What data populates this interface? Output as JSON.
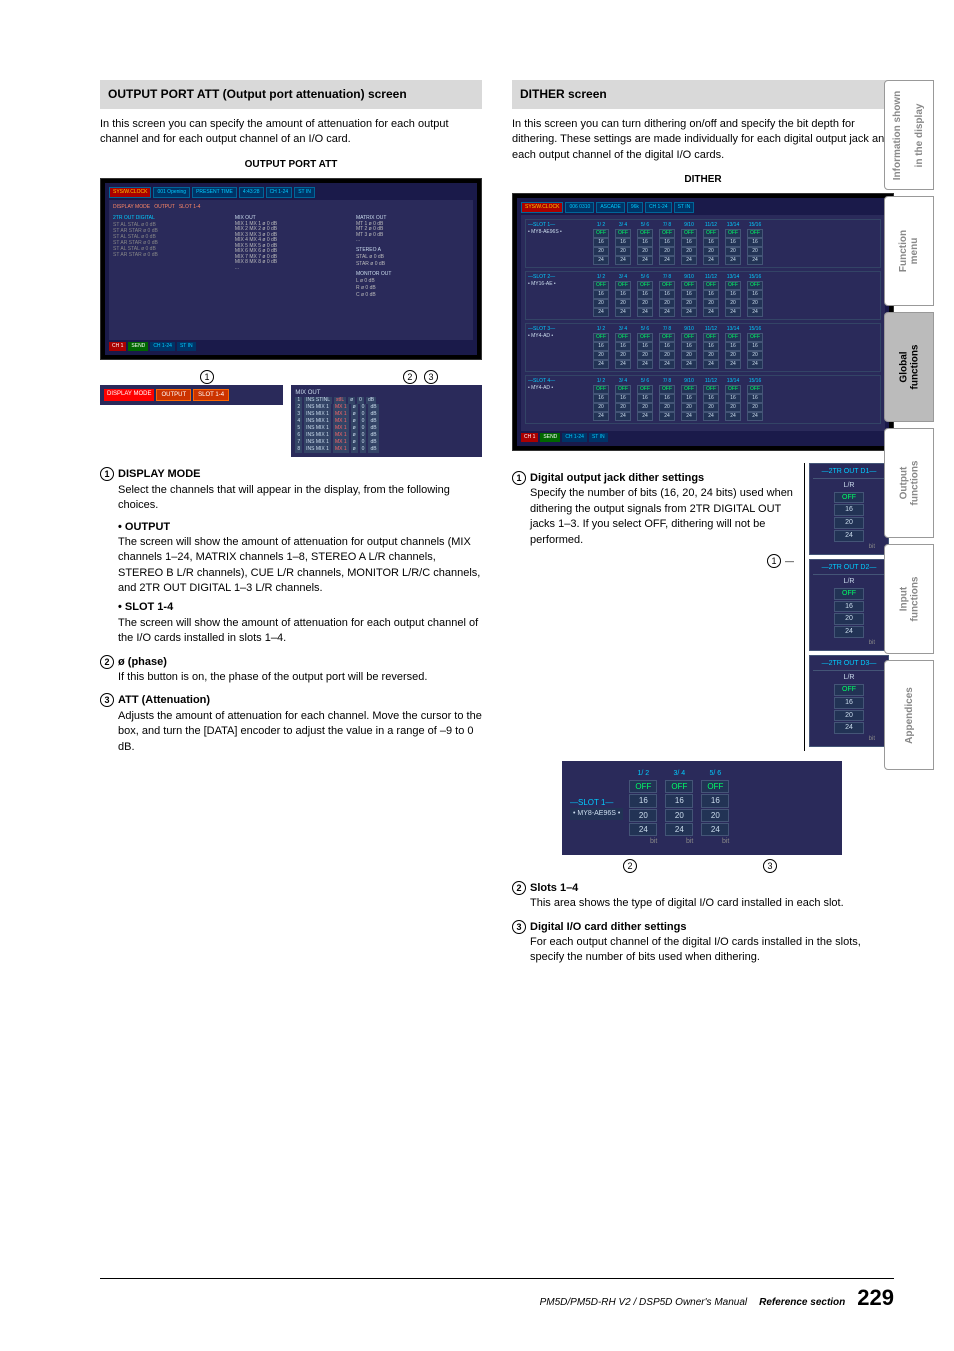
{
  "left": {
    "header": "OUTPUT PORT ATT (Output port attenuation) screen",
    "intro": "In this screen you can specify the amount of attenuation for each output channel and for each output channel of an I/O card.",
    "caption": "OUTPUT PORT ATT",
    "topbar": {
      "clock_label": "SYS/W.CLOCK",
      "scene": "001 Opening",
      "time_label": "PRESENT TIME",
      "time": "4:43:28",
      "meter": "CH 1-24",
      "stin": "ST IN"
    },
    "display_mode": "DISPLAY MODE",
    "dm_output": "OUTPUT",
    "dm_slot": "SLOT 1-4",
    "mix_out_label": "MIX OUT",
    "mix_rows": [
      [
        "1",
        "INS STINL",
        "stIL",
        "ø",
        "0",
        "dB"
      ],
      [
        "2",
        "INS MIX 1",
        "MX 1",
        "ø",
        "0",
        "dB"
      ],
      [
        "3",
        "INS MIX 1",
        "MX 1",
        "ø",
        "0",
        "dB"
      ],
      [
        "4",
        "INS MIX 1",
        "MX 1",
        "ø",
        "0",
        "dB"
      ],
      [
        "5",
        "INS MIX 1",
        "MX 1",
        "ø",
        "0",
        "dB"
      ],
      [
        "6",
        "INS MIX 1",
        "MX 1",
        "ø",
        "0",
        "dB"
      ],
      [
        "7",
        "INS MIX 1",
        "MX 1",
        "ø",
        "0",
        "dB"
      ],
      [
        "8",
        "INS MIX 1",
        "MX 1",
        "ø",
        "0",
        "dB"
      ]
    ],
    "items": {
      "i1_title": "DISPLAY MODE",
      "i1_body": "Select the channels that will appear in the display, from the following choices.",
      "b1_title": "• OUTPUT",
      "b1_body": "The screen will show the amount of attenuation for output channels (MIX channels 1–24, MATRIX channels 1–8, STEREO A L/R channels, STEREO B L/R channels), CUE L/R channels, MONITOR L/R/C channels, and 2TR OUT DIGITAL 1–3 L/R channels.",
      "b2_title": "• SLOT 1-4",
      "b2_body": "The screen will show the amount of attenuation for each output channel of the I/O cards installed in slots 1–4.",
      "i2_title": "ø (phase)",
      "i2_body": "If this button is on, the phase of the output port will be reversed.",
      "i3_title": "ATT (Attenuation)",
      "i3_body": "Adjusts the amount of attenuation for each channel. Move the cursor to the box, and turn the [DATA] encoder to adjust the value in a range of –9 to 0 dB."
    }
  },
  "right": {
    "header": "DITHER screen",
    "intro": "In this screen you can turn dithering on/off and specify the bit depth for dithering. These settings are made individually for each digital output jack and each output channel of the digital I/O cards.",
    "caption": "DITHER",
    "topbar": {
      "clock_label": "SYS/W.CLOCK",
      "scene": "006 0310",
      "cascade": "ASCADE",
      "fs": "Fs",
      "khz": "96k",
      "meter": "CH 1-24",
      "stin": "ST IN"
    },
    "slot_names": [
      "SLOT 1",
      "SLOT 2",
      "SLOT 3",
      "SLOT 4"
    ],
    "slot_cards": [
      "MY8-AE96S",
      "MY16-AE",
      "MY4-AD",
      "MY4-AD"
    ],
    "ch_pairs": [
      "1/ 2",
      "3/ 4",
      "5/ 6",
      "7/ 8",
      "9/10",
      "11/12",
      "13/14",
      "15/16"
    ],
    "opts": [
      "OFF",
      "16",
      "20",
      "24"
    ],
    "bit": "bit",
    "tr_out": [
      "2TR OUT D1",
      "2TR OUT D2",
      "2TR OUT D3"
    ],
    "tr_lr": "L/R",
    "i1_title": "Digital output jack dither settings",
    "i1_body": "Specify the number of bits (16, 20, 24 bits) used when dithering the output signals from 2TR DIGITAL OUT jacks 1–3. If you select OFF, dithering will not be performed.",
    "slot_detail_label": "SLOT 1",
    "slot_detail_name": "MY8-AE96S",
    "slot_pairs": [
      "1/ 2",
      "3/ 4",
      "5/ 6"
    ],
    "i2_title": "Slots 1–4",
    "i2_body": "This area shows the type of digital I/O card installed in each slot.",
    "i3_title": "Digital I/O card dither settings",
    "i3_body": "For each output channel of the digital I/O cards installed in the slots, specify the number of bits used when dithering."
  },
  "tabs": [
    "Information shown in the display",
    "Function menu",
    "Global functions",
    "Output functions",
    "Input functions",
    "Appendices"
  ],
  "active_tab_index": 2,
  "footer": {
    "manual": "PM5D/PM5D-RH V2 / DSP5D Owner's Manual",
    "section": "Reference section",
    "page": "229"
  },
  "colors": {
    "header_bg": "#d9d9d9",
    "screen_bg": "#2a2a5a",
    "cyan": "#00ccff",
    "green": "#00ff66",
    "red": "#aa0000"
  }
}
